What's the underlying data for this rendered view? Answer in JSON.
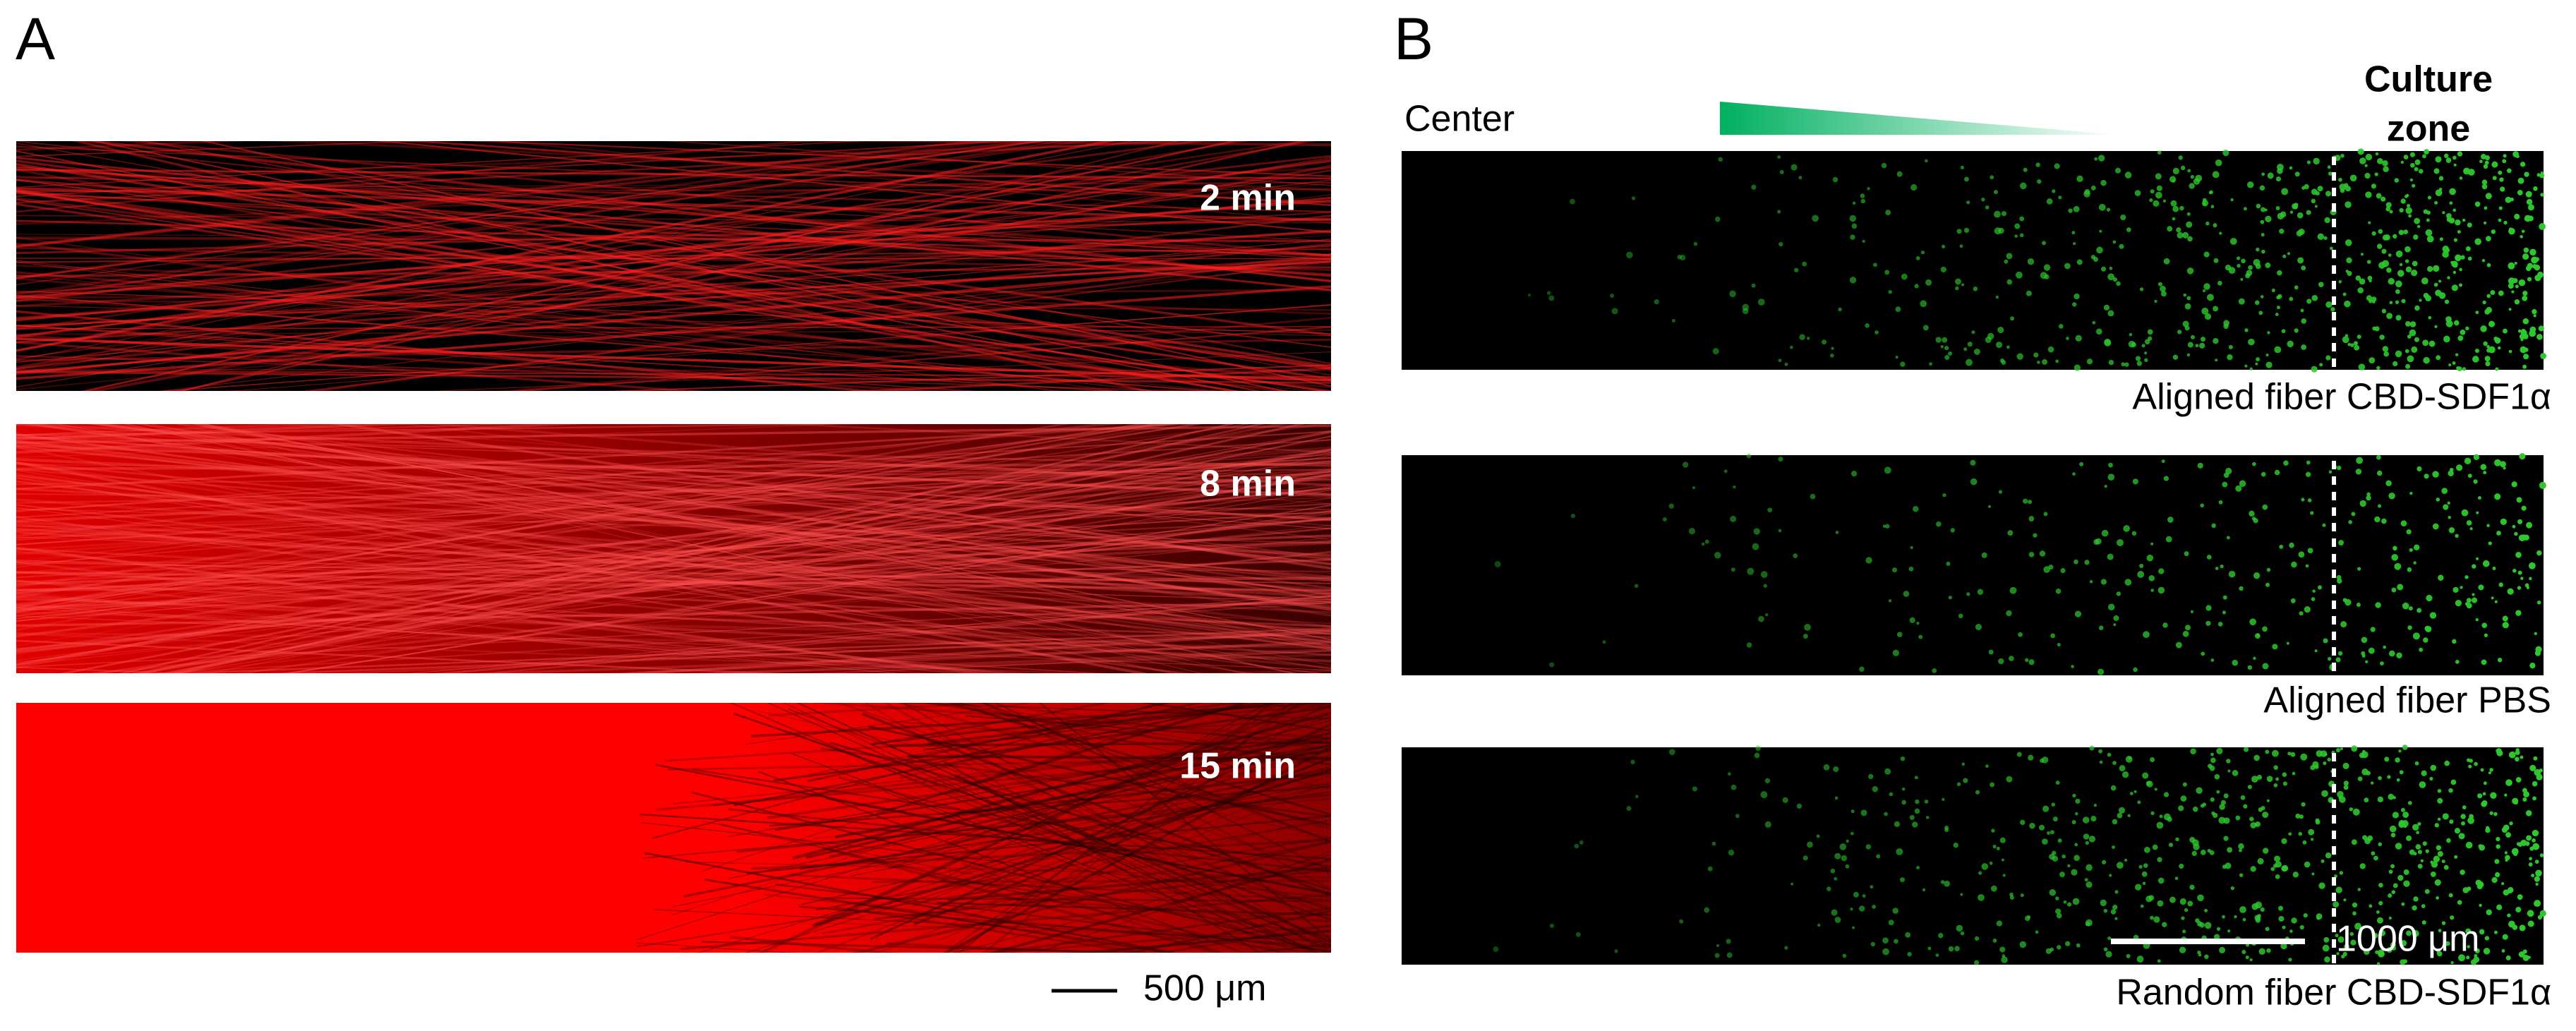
{
  "panel_a": {
    "label": "A",
    "images": [
      {
        "time": "2 min"
      },
      {
        "time": "8 min"
      },
      {
        "time": "15 min"
      }
    ],
    "scale_bar": "500 μm"
  },
  "panel_b": {
    "label": "B",
    "center": "Center",
    "culture_zone": [
      "Culture",
      "zone"
    ],
    "images": [
      {
        "caption": "Aligned fiber CBD-SDF1α"
      },
      {
        "caption": "Aligned fiber PBS"
      },
      {
        "caption": "Random fiber CBD-SDF1α"
      }
    ],
    "scale_bar": "1000 μm"
  }
}
